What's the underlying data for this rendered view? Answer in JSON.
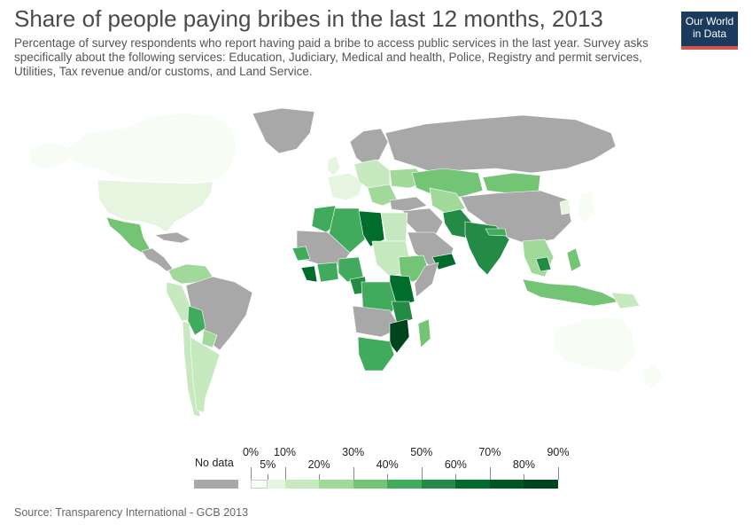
{
  "title": "Share of people paying bribes in the last 12 months, 2013",
  "subtitle": "Percentage of survey respondents who report having paid a bribe to access public services in the last year. Survey asks specifically about the following services: Education, Judiciary, Medical and health, Police, Registry and permit services, Utilities, Tax revenue and/or customs, and Land Service.",
  "logo": {
    "line1": "Our World",
    "line2": "in Data"
  },
  "source": "Source: Transparency International - GCB 2013",
  "colors": {
    "no_data": "#a8a8a8",
    "land_border": "#ffffff",
    "ocean": "#ffffff"
  },
  "legend": {
    "no_data_label": "No data",
    "upper_ticks": [
      "0%",
      "10%",
      "30%",
      "50%",
      "70%",
      "90%"
    ],
    "lower_ticks": [
      "5%",
      "20%",
      "40%",
      "60%",
      "80%"
    ],
    "bins": [
      {
        "from": 0,
        "to": 5,
        "color": "#f7fcf5"
      },
      {
        "from": 5,
        "to": 10,
        "color": "#e5f5e0"
      },
      {
        "from": 10,
        "to": 20,
        "color": "#c7e9c0"
      },
      {
        "from": 20,
        "to": 30,
        "color": "#a1d99b"
      },
      {
        "from": 30,
        "to": 40,
        "color": "#74c476"
      },
      {
        "from": 40,
        "to": 50,
        "color": "#41ab5d"
      },
      {
        "from": 50,
        "to": 60,
        "color": "#238b45"
      },
      {
        "from": 60,
        "to": 70,
        "color": "#006d2c"
      },
      {
        "from": 70,
        "to": 80,
        "color": "#00561f"
      },
      {
        "from": 80,
        "to": 90,
        "color": "#00441b"
      }
    ]
  }
}
